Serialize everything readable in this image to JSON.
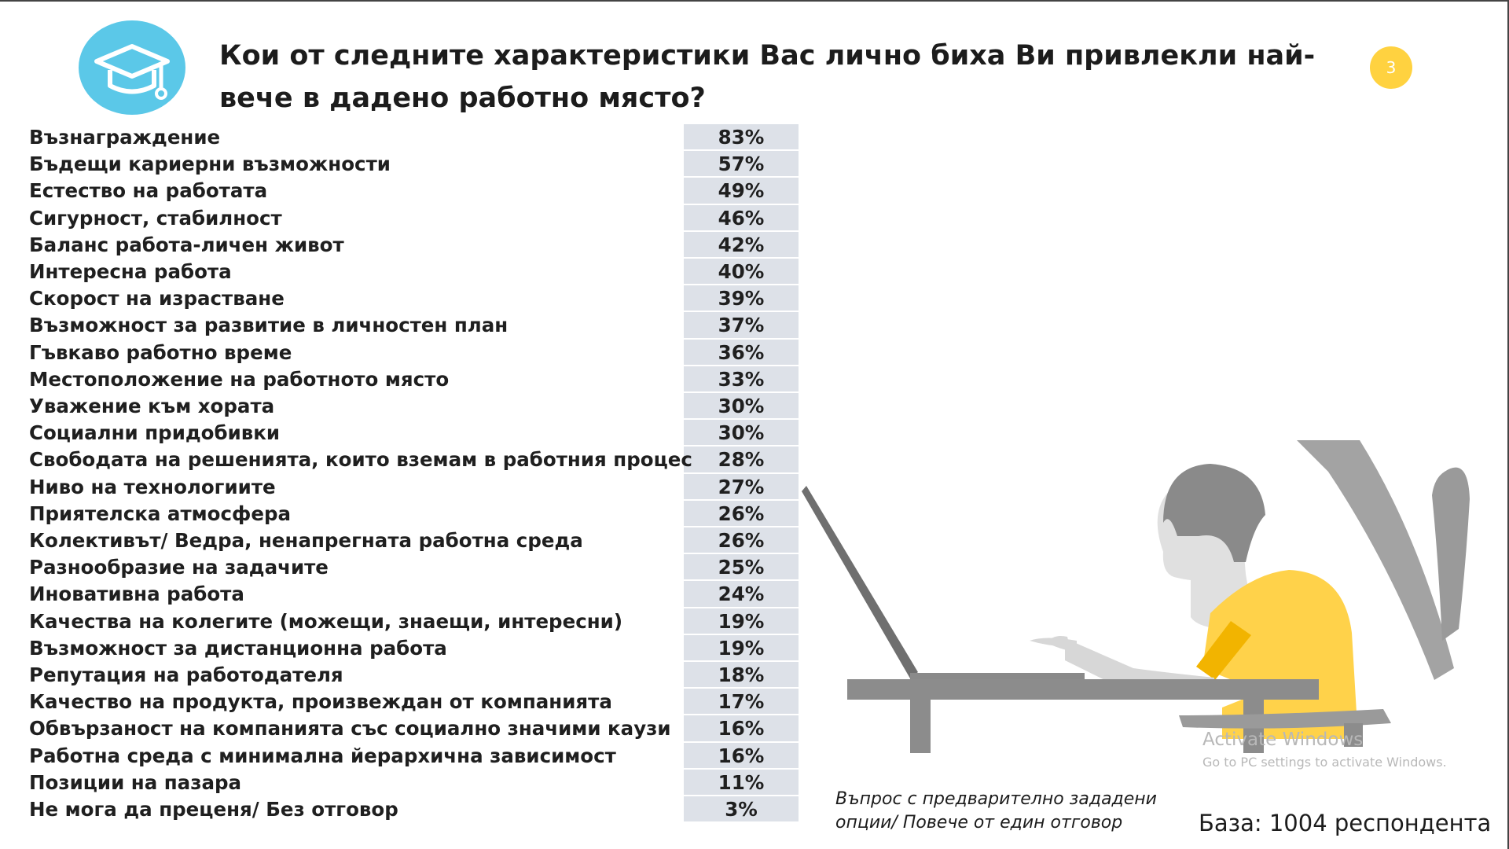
{
  "slide": {
    "title": "Кои от следните характеристики Вас лично биха Ви привлекли най-вече в дадено работно място?",
    "page_number": "3",
    "note": "Въпрос с предварително зададени опции/ Повече от един отговор",
    "base": "База: 1004 респондента"
  },
  "watermark": {
    "title": "Activate Windows",
    "subtitle": "Go to PC settings to activate Windows."
  },
  "icons": {
    "logo": "graduation-cap-icon"
  },
  "colors": {
    "logo_circle": "#5bc8e8",
    "page_badge": "#ffd240",
    "value_column_bg": "#dde1e8",
    "shirt_yellow": "#ffd24a",
    "shirt_dark": "#f2b400",
    "figure_grey": "#9a9a9a"
  },
  "chart_data": {
    "type": "table",
    "columns": [
      "",
      ""
    ],
    "rows": [
      {
        "label": "Възнаграждение",
        "value": "83%",
        "num": 83
      },
      {
        "label": "Бъдещи кариерни възможности",
        "value": "57%",
        "num": 57
      },
      {
        "label": "Естество на работата",
        "value": "49%",
        "num": 49
      },
      {
        "label": "Сигурност, стабилност",
        "value": "46%",
        "num": 46
      },
      {
        "label": "Баланс работа-личен живот",
        "value": "42%",
        "num": 42
      },
      {
        "label": "Интересна работа",
        "value": "40%",
        "num": 40
      },
      {
        "label": "Скорост на израстване",
        "value": "39%",
        "num": 39
      },
      {
        "label": "Възможност за развитие в личностен план",
        "value": "37%",
        "num": 37
      },
      {
        "label": "Гъвкаво работно време",
        "value": "36%",
        "num": 36
      },
      {
        "label": "Местоположение на работното място",
        "value": "33%",
        "num": 33
      },
      {
        "label": "Уважение към хората",
        "value": "30%",
        "num": 30
      },
      {
        "label": "Социални придобивки",
        "value": "30%",
        "num": 30
      },
      {
        "label": "Свободата на решенията, които вземам в работния процес",
        "value": "28%",
        "num": 28
      },
      {
        "label": "Ниво на технологиите",
        "value": "27%",
        "num": 27
      },
      {
        "label": "Приятелска атмосфера",
        "value": "26%",
        "num": 26
      },
      {
        "label": "Колективът/ Ведра, ненапрегната работна среда",
        "value": "26%",
        "num": 26
      },
      {
        "label": "Разнообразие на задачите",
        "value": "25%",
        "num": 25
      },
      {
        "label": "Иновативна работа",
        "value": "24%",
        "num": 24
      },
      {
        "label": "Качества на колегите (можещи, знаещи, интересни)",
        "value": "19%",
        "num": 19
      },
      {
        "label": "Възможност за дистанционна работа",
        "value": "19%",
        "num": 19
      },
      {
        "label": "Репутация на работодателя",
        "value": "18%",
        "num": 18
      },
      {
        "label": "Качество на продукта, произвеждан от компанията",
        "value": "17%",
        "num": 17
      },
      {
        "label": "Обвързаност на компанията със социално значими каузи",
        "value": "16%",
        "num": 16
      },
      {
        "label": "Работна среда с минимална йерархична зависимост",
        "value": "16%",
        "num": 16
      },
      {
        "label": "Позиции на пазара",
        "value": "11%",
        "num": 11
      },
      {
        "label": "Не мога да преценя/ Без отговор",
        "value": "3%",
        "num": 3
      }
    ]
  }
}
